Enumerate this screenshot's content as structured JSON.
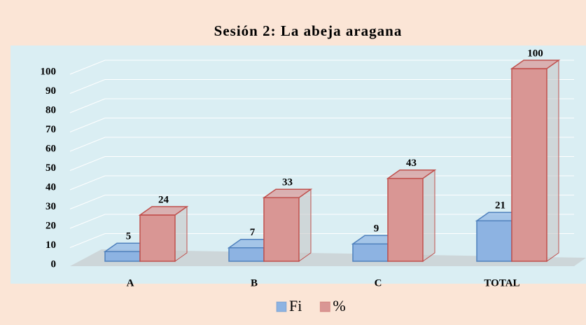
{
  "chart_data": {
    "type": "bar3d",
    "title": "Sesión 2: La abeja aragana",
    "categories": [
      "A",
      "B",
      "C",
      "TOTAL"
    ],
    "series": [
      {
        "name": "Fi",
        "color": "#8db3e2",
        "values": [
          5,
          7,
          9,
          21
        ]
      },
      {
        "name": "%",
        "color": "#d99694",
        "values": [
          24,
          33,
          43,
          100
        ]
      }
    ],
    "ylim": [
      0,
      100
    ],
    "yticks": [
      0,
      10,
      20,
      30,
      40,
      50,
      60,
      70,
      80,
      90,
      100
    ],
    "grid": true,
    "legend": "bottom"
  }
}
